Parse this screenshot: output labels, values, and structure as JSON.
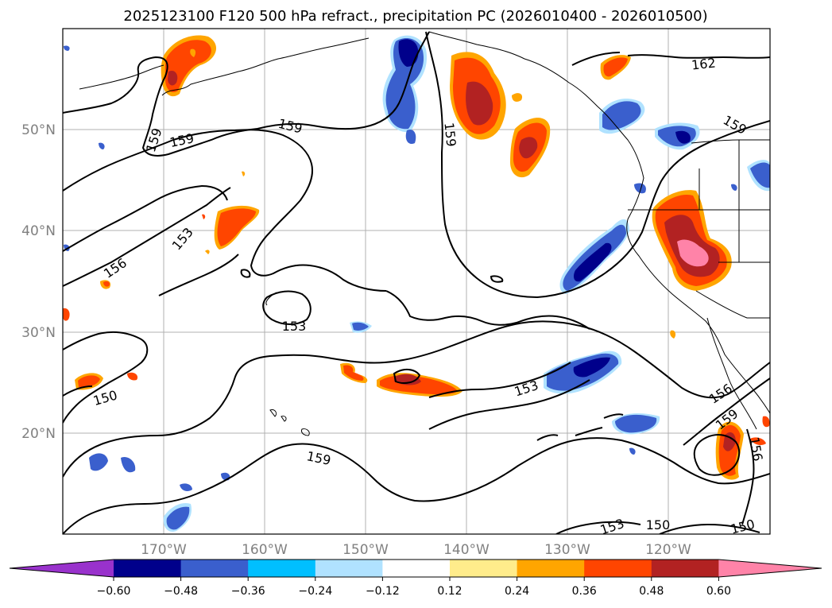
{
  "title": "2025123100 F120 500 hPa refract., precipitation PC (2026010400 - 2026010500)",
  "lat_labels": [
    "50°N",
    "40°N",
    "30°N",
    "20°N"
  ],
  "lon_labels": [
    "170°W",
    "160°W",
    "150°W",
    "140°W",
    "130°W",
    "120°W"
  ],
  "colorbar": {
    "colors": [
      "#9932cc",
      "#00008b",
      "#3a5fcd",
      "#00bfff",
      "#b0e2ff",
      "#ffffff",
      "#ffec8b",
      "#ffa500",
      "#ff4500",
      "#b22222",
      "#ff83a8"
    ],
    "tick_labels": [
      "−0.60",
      "−0.48",
      "−0.36",
      "−0.24",
      "−0.12",
      "0.12",
      "0.24",
      "0.36",
      "0.48",
      "0.60"
    ]
  },
  "contour_labels": {
    "c159_a": "159",
    "c159_b": "159",
    "c159_c": "159",
    "c159_d": "159",
    "c159_e": "159",
    "c159_f": "159",
    "c159_g": "159",
    "c162": "162",
    "c156_a": "156",
    "c156_b": "156",
    "c156_c": "156",
    "c153_a": "153",
    "c153_b": "153",
    "c153_c": "153",
    "c153_d": "153",
    "c150_a": "150",
    "c150_b": "150",
    "c150_c": "150"
  }
}
